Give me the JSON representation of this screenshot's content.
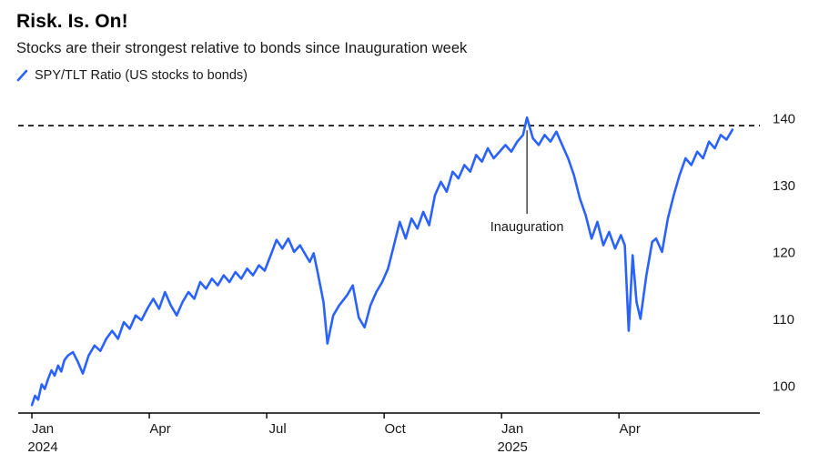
{
  "header": {
    "title": "Risk. Is. On!",
    "subtitle": "Stocks are their strongest relative to bonds since Inauguration week"
  },
  "legend": {
    "label": "SPY/TLT Ratio (US stocks to bonds)",
    "color": "#2962ff"
  },
  "chart_data": {
    "type": "line",
    "title": "Risk. Is. On!",
    "subtitle": "Stocks are their strongest relative to bonds since Inauguration week",
    "series": [
      {
        "name": "SPY/TLT Ratio (US stocks to bonds)",
        "color": "#2962ff",
        "x_unit": "months since Jan 2024",
        "points": [
          [
            0.0,
            97.2
          ],
          [
            0.08,
            98.6
          ],
          [
            0.16,
            98.0
          ],
          [
            0.25,
            100.3
          ],
          [
            0.33,
            99.6
          ],
          [
            0.42,
            101.2
          ],
          [
            0.5,
            102.4
          ],
          [
            0.58,
            101.6
          ],
          [
            0.67,
            103.1
          ],
          [
            0.75,
            102.2
          ],
          [
            0.83,
            103.9
          ],
          [
            0.92,
            104.6
          ],
          [
            1.05,
            105.1
          ],
          [
            1.18,
            103.6
          ],
          [
            1.3,
            101.9
          ],
          [
            1.45,
            104.6
          ],
          [
            1.6,
            106.1
          ],
          [
            1.75,
            105.3
          ],
          [
            1.9,
            107.1
          ],
          [
            2.05,
            108.3
          ],
          [
            2.2,
            107.1
          ],
          [
            2.35,
            109.6
          ],
          [
            2.5,
            108.6
          ],
          [
            2.65,
            110.6
          ],
          [
            2.8,
            109.9
          ],
          [
            2.95,
            111.6
          ],
          [
            3.1,
            113.1
          ],
          [
            3.25,
            111.6
          ],
          [
            3.4,
            114.1
          ],
          [
            3.55,
            112.1
          ],
          [
            3.7,
            110.6
          ],
          [
            3.85,
            112.6
          ],
          [
            4.0,
            114.1
          ],
          [
            4.15,
            113.1
          ],
          [
            4.3,
            115.6
          ],
          [
            4.45,
            114.6
          ],
          [
            4.6,
            116.1
          ],
          [
            4.75,
            115.1
          ],
          [
            4.9,
            116.6
          ],
          [
            5.05,
            115.6
          ],
          [
            5.2,
            117.1
          ],
          [
            5.35,
            116.1
          ],
          [
            5.5,
            117.6
          ],
          [
            5.65,
            116.6
          ],
          [
            5.8,
            118.1
          ],
          [
            5.95,
            117.3
          ],
          [
            6.1,
            119.6
          ],
          [
            6.25,
            121.9
          ],
          [
            6.4,
            120.6
          ],
          [
            6.55,
            122.1
          ],
          [
            6.7,
            120.1
          ],
          [
            6.85,
            121.1
          ],
          [
            7.0,
            119.6
          ],
          [
            7.1,
            118.6
          ],
          [
            7.2,
            119.9
          ],
          [
            7.3,
            117.1
          ],
          [
            7.45,
            112.6
          ],
          [
            7.55,
            106.4
          ],
          [
            7.7,
            110.6
          ],
          [
            7.85,
            112.1
          ],
          [
            8.05,
            113.6
          ],
          [
            8.2,
            115.1
          ],
          [
            8.35,
            110.3
          ],
          [
            8.5,
            108.8
          ],
          [
            8.65,
            112.1
          ],
          [
            8.8,
            114.1
          ],
          [
            8.95,
            115.6
          ],
          [
            9.1,
            117.6
          ],
          [
            9.25,
            121.1
          ],
          [
            9.4,
            124.6
          ],
          [
            9.55,
            122.1
          ],
          [
            9.7,
            125.1
          ],
          [
            9.85,
            123.6
          ],
          [
            10.0,
            126.1
          ],
          [
            10.15,
            124.1
          ],
          [
            10.3,
            128.6
          ],
          [
            10.45,
            130.6
          ],
          [
            10.6,
            129.1
          ],
          [
            10.75,
            132.1
          ],
          [
            10.9,
            131.1
          ],
          [
            11.05,
            133.1
          ],
          [
            11.2,
            132.1
          ],
          [
            11.35,
            134.6
          ],
          [
            11.5,
            133.6
          ],
          [
            11.65,
            135.6
          ],
          [
            11.8,
            134.1
          ],
          [
            11.95,
            135.1
          ],
          [
            12.1,
            136.1
          ],
          [
            12.25,
            135.1
          ],
          [
            12.4,
            136.6
          ],
          [
            12.55,
            137.6
          ],
          [
            12.65,
            140.2
          ],
          [
            12.8,
            137.1
          ],
          [
            12.95,
            136.1
          ],
          [
            13.1,
            137.6
          ],
          [
            13.25,
            136.6
          ],
          [
            13.4,
            138.1
          ],
          [
            13.55,
            136.1
          ],
          [
            13.7,
            134.1
          ],
          [
            13.85,
            131.6
          ],
          [
            14.0,
            128.1
          ],
          [
            14.15,
            125.6
          ],
          [
            14.3,
            122.1
          ],
          [
            14.45,
            124.6
          ],
          [
            14.6,
            121.1
          ],
          [
            14.75,
            123.1
          ],
          [
            14.9,
            120.6
          ],
          [
            15.05,
            122.6
          ],
          [
            15.15,
            121.1
          ],
          [
            15.25,
            108.3
          ],
          [
            15.35,
            119.6
          ],
          [
            15.45,
            112.6
          ],
          [
            15.55,
            110.1
          ],
          [
            15.7,
            116.6
          ],
          [
            15.85,
            121.6
          ],
          [
            15.95,
            122.1
          ],
          [
            16.1,
            120.1
          ],
          [
            16.25,
            125.1
          ],
          [
            16.4,
            128.6
          ],
          [
            16.55,
            131.6
          ],
          [
            16.7,
            134.1
          ],
          [
            16.85,
            133.1
          ],
          [
            17.0,
            135.1
          ],
          [
            17.15,
            134.1
          ],
          [
            17.3,
            136.6
          ],
          [
            17.45,
            135.6
          ],
          [
            17.6,
            137.6
          ],
          [
            17.75,
            136.9
          ],
          [
            17.9,
            138.4
          ]
        ]
      }
    ],
    "x_ticks": [
      {
        "pos": 0,
        "label": "Jan",
        "sublabel": "2024"
      },
      {
        "pos": 3,
        "label": "Apr",
        "sublabel": ""
      },
      {
        "pos": 6,
        "label": "Jul",
        "sublabel": ""
      },
      {
        "pos": 9,
        "label": "Oct",
        "sublabel": ""
      },
      {
        "pos": 12,
        "label": "Jan",
        "sublabel": "2025"
      },
      {
        "pos": 15,
        "label": "Apr",
        "sublabel": ""
      }
    ],
    "y_ticks": [
      100,
      110,
      120,
      130,
      140
    ],
    "x_range": [
      -0.35,
      18.6
    ],
    "y_range": [
      96,
      142
    ],
    "grid": false,
    "legend_position": "top-left",
    "dashed_reference_line": {
      "value": 139.0,
      "color": "#000000"
    },
    "annotation": {
      "label": "Inauguration",
      "x": 12.65,
      "line_top_value": 138.3,
      "line_bottom_value": 125.8,
      "text_value": 123.2
    },
    "axis_color": "#000000"
  }
}
